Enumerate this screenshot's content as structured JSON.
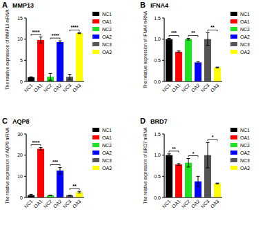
{
  "chart_data": [
    {
      "type": "bar",
      "panel": "A",
      "title": "MMP13",
      "y_label": "The relative expression of MMP13 mRNA",
      "categories": [
        "NC1",
        "OA1",
        "NC2",
        "OA2",
        "NC3",
        "OA3"
      ],
      "values": [
        1.0,
        9.8,
        1.1,
        9.3,
        1.1,
        11.4
      ],
      "errors": [
        0.1,
        0.7,
        0.8,
        0.3,
        0.6,
        0.1
      ],
      "colors": [
        "#000000",
        "#ff0000",
        "#22e022",
        "#0000ff",
        "#555555",
        "#ffff00"
      ],
      "ylim": [
        0,
        15
      ],
      "yticks": [
        0,
        5,
        10,
        15
      ],
      "legend": "right",
      "comparisons": [
        {
          "groups": [
            "NC1",
            "OA1"
          ],
          "label": "****"
        },
        {
          "groups": [
            "NC2",
            "OA2"
          ],
          "label": "****"
        },
        {
          "groups": [
            "NC3",
            "OA3"
          ],
          "label": "****"
        }
      ]
    },
    {
      "type": "bar",
      "panel": "B",
      "title": "IFNA4",
      "y_label": "The relative expression of IFNA4 mRNA",
      "categories": [
        "NC1",
        "OA1",
        "NC2",
        "OA2",
        "NC3",
        "OA3"
      ],
      "values": [
        1.0,
        0.7,
        1.0,
        0.45,
        1.0,
        0.33
      ],
      "errors": [
        0.02,
        0.02,
        0.02,
        0.02,
        0.15,
        0.01
      ],
      "colors": [
        "#000000",
        "#ff0000",
        "#22e022",
        "#0000ff",
        "#555555",
        "#ffff00"
      ],
      "ylim": [
        0,
        1.5
      ],
      "yticks": [
        {
          "value": 0,
          "label": "0.0"
        },
        {
          "value": 0.5,
          "label": "0.5"
        },
        {
          "value": 1,
          "label": "1.0"
        },
        {
          "value": 1.5,
          "label": "1.5"
        }
      ],
      "legend": "right",
      "comparisons": [
        {
          "groups": [
            "NC1",
            "OA1"
          ],
          "label": "***"
        },
        {
          "groups": [
            "NC2",
            "OA2"
          ],
          "label": "**"
        },
        {
          "groups": [
            "NC3",
            "OA3"
          ],
          "label": "**"
        }
      ]
    },
    {
      "type": "bar",
      "panel": "C",
      "title": "AQP8",
      "y_label": "The relative expression of AQP8 mRNA",
      "categories": [
        "NC1",
        "OA1",
        "NC2",
        "OA2",
        "NC3",
        "OA3"
      ],
      "values": [
        1.1,
        23.0,
        1.0,
        12.7,
        1.0,
        2.5
      ],
      "errors": [
        0.4,
        0.6,
        0.1,
        1.5,
        0.1,
        0.4
      ],
      "colors": [
        "#000000",
        "#ff0000",
        "#22e022",
        "#0000ff",
        "#555555",
        "#ffff00"
      ],
      "ylim": [
        0,
        30
      ],
      "yticks": [
        0,
        10,
        20,
        30
      ],
      "legend": "right",
      "comparisons": [
        {
          "groups": [
            "NC1",
            "OA1"
          ],
          "label": "****"
        },
        {
          "groups": [
            "NC2",
            "OA2"
          ],
          "label": "***"
        },
        {
          "groups": [
            "NC3",
            "OA3"
          ],
          "label": "**"
        }
      ]
    },
    {
      "type": "bar",
      "panel": "D",
      "title": "BRD7",
      "y_label": "The relative expression of BRD7 mRNA",
      "categories": [
        "NC1",
        "OA1",
        "NC2",
        "OA2",
        "NC3",
        "OA3"
      ],
      "values": [
        1.0,
        0.78,
        0.82,
        0.38,
        1.0,
        0.33
      ],
      "errors": [
        0.03,
        0.02,
        0.1,
        0.12,
        0.3,
        0.01
      ],
      "colors": [
        "#000000",
        "#ff0000",
        "#22e022",
        "#0000ff",
        "#555555",
        "#ffff00"
      ],
      "ylim": [
        0,
        1.5
      ],
      "yticks": [
        {
          "value": 0,
          "label": "0.0"
        },
        {
          "value": 0.5,
          "label": "0.5"
        },
        {
          "value": 1,
          "label": "1.0"
        },
        {
          "value": 1.5,
          "label": "1.5"
        }
      ],
      "legend": "right",
      "comparisons": [
        {
          "groups": [
            "NC1",
            "OA1"
          ],
          "label": "**"
        },
        {
          "groups": [
            "NC2",
            "OA2"
          ],
          "label": "*"
        },
        {
          "groups": [
            "NC3",
            "OA3"
          ],
          "label": "*"
        }
      ]
    }
  ]
}
